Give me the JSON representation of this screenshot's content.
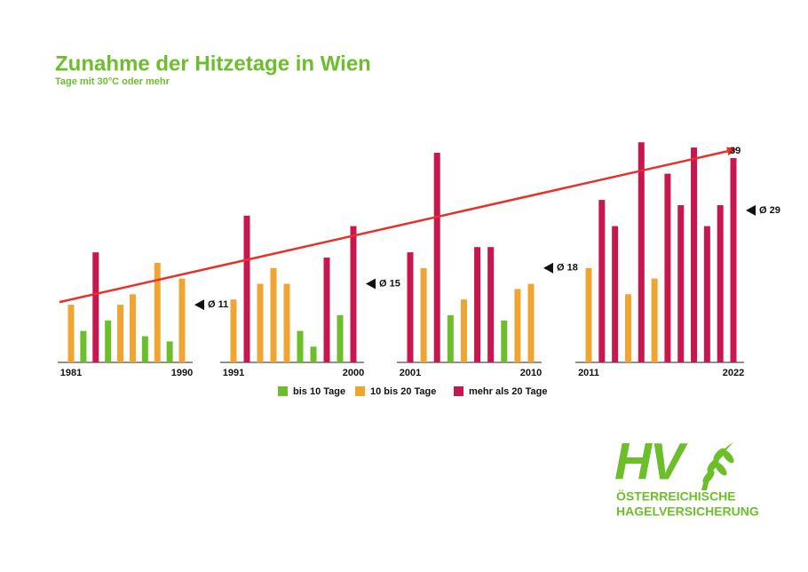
{
  "chart_data": {
    "type": "bar",
    "title": "Zunahme der Hitzetage in Wien",
    "subtitle": "Tage mit 30°C oder mehr",
    "categories": [
      "1981",
      null,
      null,
      null,
      null,
      null,
      null,
      null,
      null,
      "1990",
      "1991",
      null,
      null,
      null,
      null,
      null,
      null,
      null,
      null,
      "2000",
      "2001",
      null,
      null,
      null,
      null,
      null,
      null,
      null,
      null,
      "2010",
      "2011",
      null,
      null,
      null,
      null,
      null,
      null,
      null,
      null,
      null,
      null,
      "2022"
    ],
    "series": [
      {
        "name": "bis 10 Tage",
        "color": "#6cbf2b",
        "values": [
          null,
          6,
          null,
          8,
          null,
          null,
          5,
          null,
          4,
          null,
          null,
          null,
          null,
          null,
          null,
          6,
          3,
          null,
          9,
          null,
          null,
          null,
          null,
          9,
          null,
          null,
          null,
          8,
          null,
          null,
          null,
          null,
          null,
          null,
          null,
          null,
          null,
          null,
          null,
          null,
          null,
          null
        ]
      },
      {
        "name": "10 bis 20 Tage",
        "color": "#f0a431",
        "values": [
          11,
          null,
          null,
          null,
          11,
          13,
          null,
          19,
          null,
          16,
          12,
          null,
          15,
          18,
          15,
          null,
          null,
          null,
          null,
          null,
          null,
          18,
          null,
          null,
          12,
          null,
          null,
          null,
          14,
          15,
          18,
          null,
          null,
          13,
          null,
          16,
          null,
          null,
          null,
          null,
          null,
          null
        ]
      },
      {
        "name": "mehr als 20 Tage",
        "color": "#c8174f",
        "values": [
          null,
          null,
          21,
          null,
          null,
          null,
          null,
          null,
          null,
          null,
          null,
          28,
          null,
          null,
          null,
          null,
          null,
          20,
          null,
          26,
          21,
          null,
          40,
          null,
          null,
          22,
          22,
          null,
          null,
          null,
          null,
          31,
          26,
          null,
          42,
          null,
          36,
          30,
          41,
          26,
          30,
          39
        ]
      }
    ],
    "averages": [
      {
        "value": 11,
        "label": "Ø 11"
      },
      {
        "value": 15,
        "label": "Ø 15"
      },
      {
        "value": 18,
        "label": "Ø 18"
      },
      {
        "value": 29,
        "label": "Ø 29"
      }
    ],
    "trend": [
      11.5,
      40.7
    ],
    "trend_color": "#e8302a",
    "annotation": "39",
    "ylim": [
      0,
      45
    ]
  },
  "logo": {
    "mark": "HV",
    "line1": "ÖSTERREICHISCHE",
    "line2": "HAGELVERSICHERUNG"
  }
}
